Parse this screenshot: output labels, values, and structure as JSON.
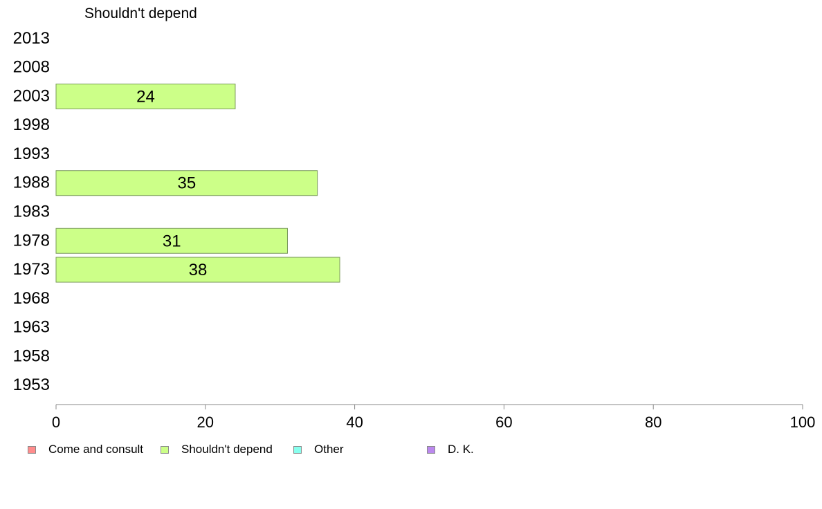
{
  "chart_data": {
    "type": "bar",
    "orientation": "horizontal",
    "title": "Shouldn't depend",
    "categories": [
      "2013",
      "2008",
      "2003",
      "1998",
      "1993",
      "1988",
      "1983",
      "1978",
      "1973",
      "1968",
      "1963",
      "1958",
      "1953"
    ],
    "series": [
      {
        "name": "Shouldn't depend",
        "values": [
          null,
          null,
          24,
          null,
          null,
          35,
          null,
          31,
          38,
          null,
          null,
          null,
          null
        ]
      }
    ],
    "xlim": [
      0,
      100
    ],
    "x_ticks": [
      0,
      20,
      40,
      60,
      80,
      100
    ],
    "grid": false,
    "legend_position": "bottom"
  },
  "legend": [
    {
      "label": "Come and consult",
      "color": "#ff8c8c"
    },
    {
      "label": "Shouldn't depend",
      "color": "#ccff88"
    },
    {
      "label": "Other",
      "color": "#88ffee"
    },
    {
      "label": "D. K.",
      "color": "#bb88ee"
    }
  ],
  "colors": {
    "bar_fill": "#ccff88",
    "bar_stroke": "#7a9a5a",
    "axis": "#888888"
  }
}
